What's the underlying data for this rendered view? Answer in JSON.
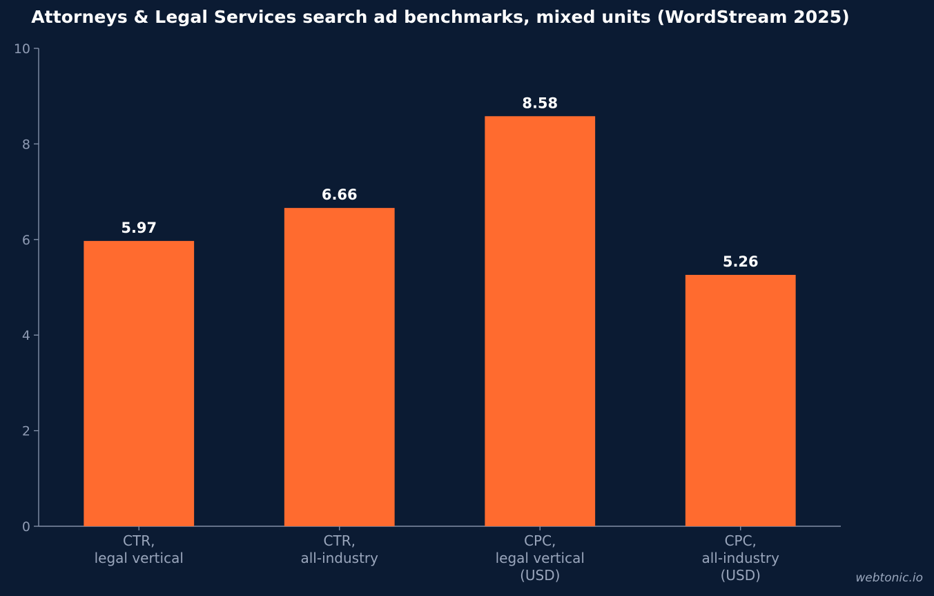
{
  "chart_data": {
    "type": "bar",
    "title": "Attorneys & Legal Services search ad benchmarks, mixed units (WordStream 2025)",
    "categories": [
      [
        "CTR,",
        "legal vertical"
      ],
      [
        "CTR,",
        "all-industry"
      ],
      [
        "CPC,",
        "legal vertical",
        "(USD)"
      ],
      [
        "CPC,",
        "all-industry",
        "(USD)"
      ]
    ],
    "values": [
      5.97,
      6.66,
      8.58,
      5.26
    ],
    "value_labels": [
      "5.97",
      "6.66",
      "8.58",
      "5.26"
    ],
    "ylim": [
      0,
      10
    ],
    "yticks": [
      0,
      2,
      4,
      6,
      8,
      10
    ],
    "xlabel": "",
    "ylabel": "",
    "grid": false,
    "bar_color": "#ff6b2f"
  },
  "watermark": "webtonic.io",
  "colors": {
    "background": "#0b1b33",
    "bar": "#ff6b2f",
    "axis": "#8390a8",
    "tick_text": "#8f9bb3",
    "value_text": "#ffffff"
  }
}
